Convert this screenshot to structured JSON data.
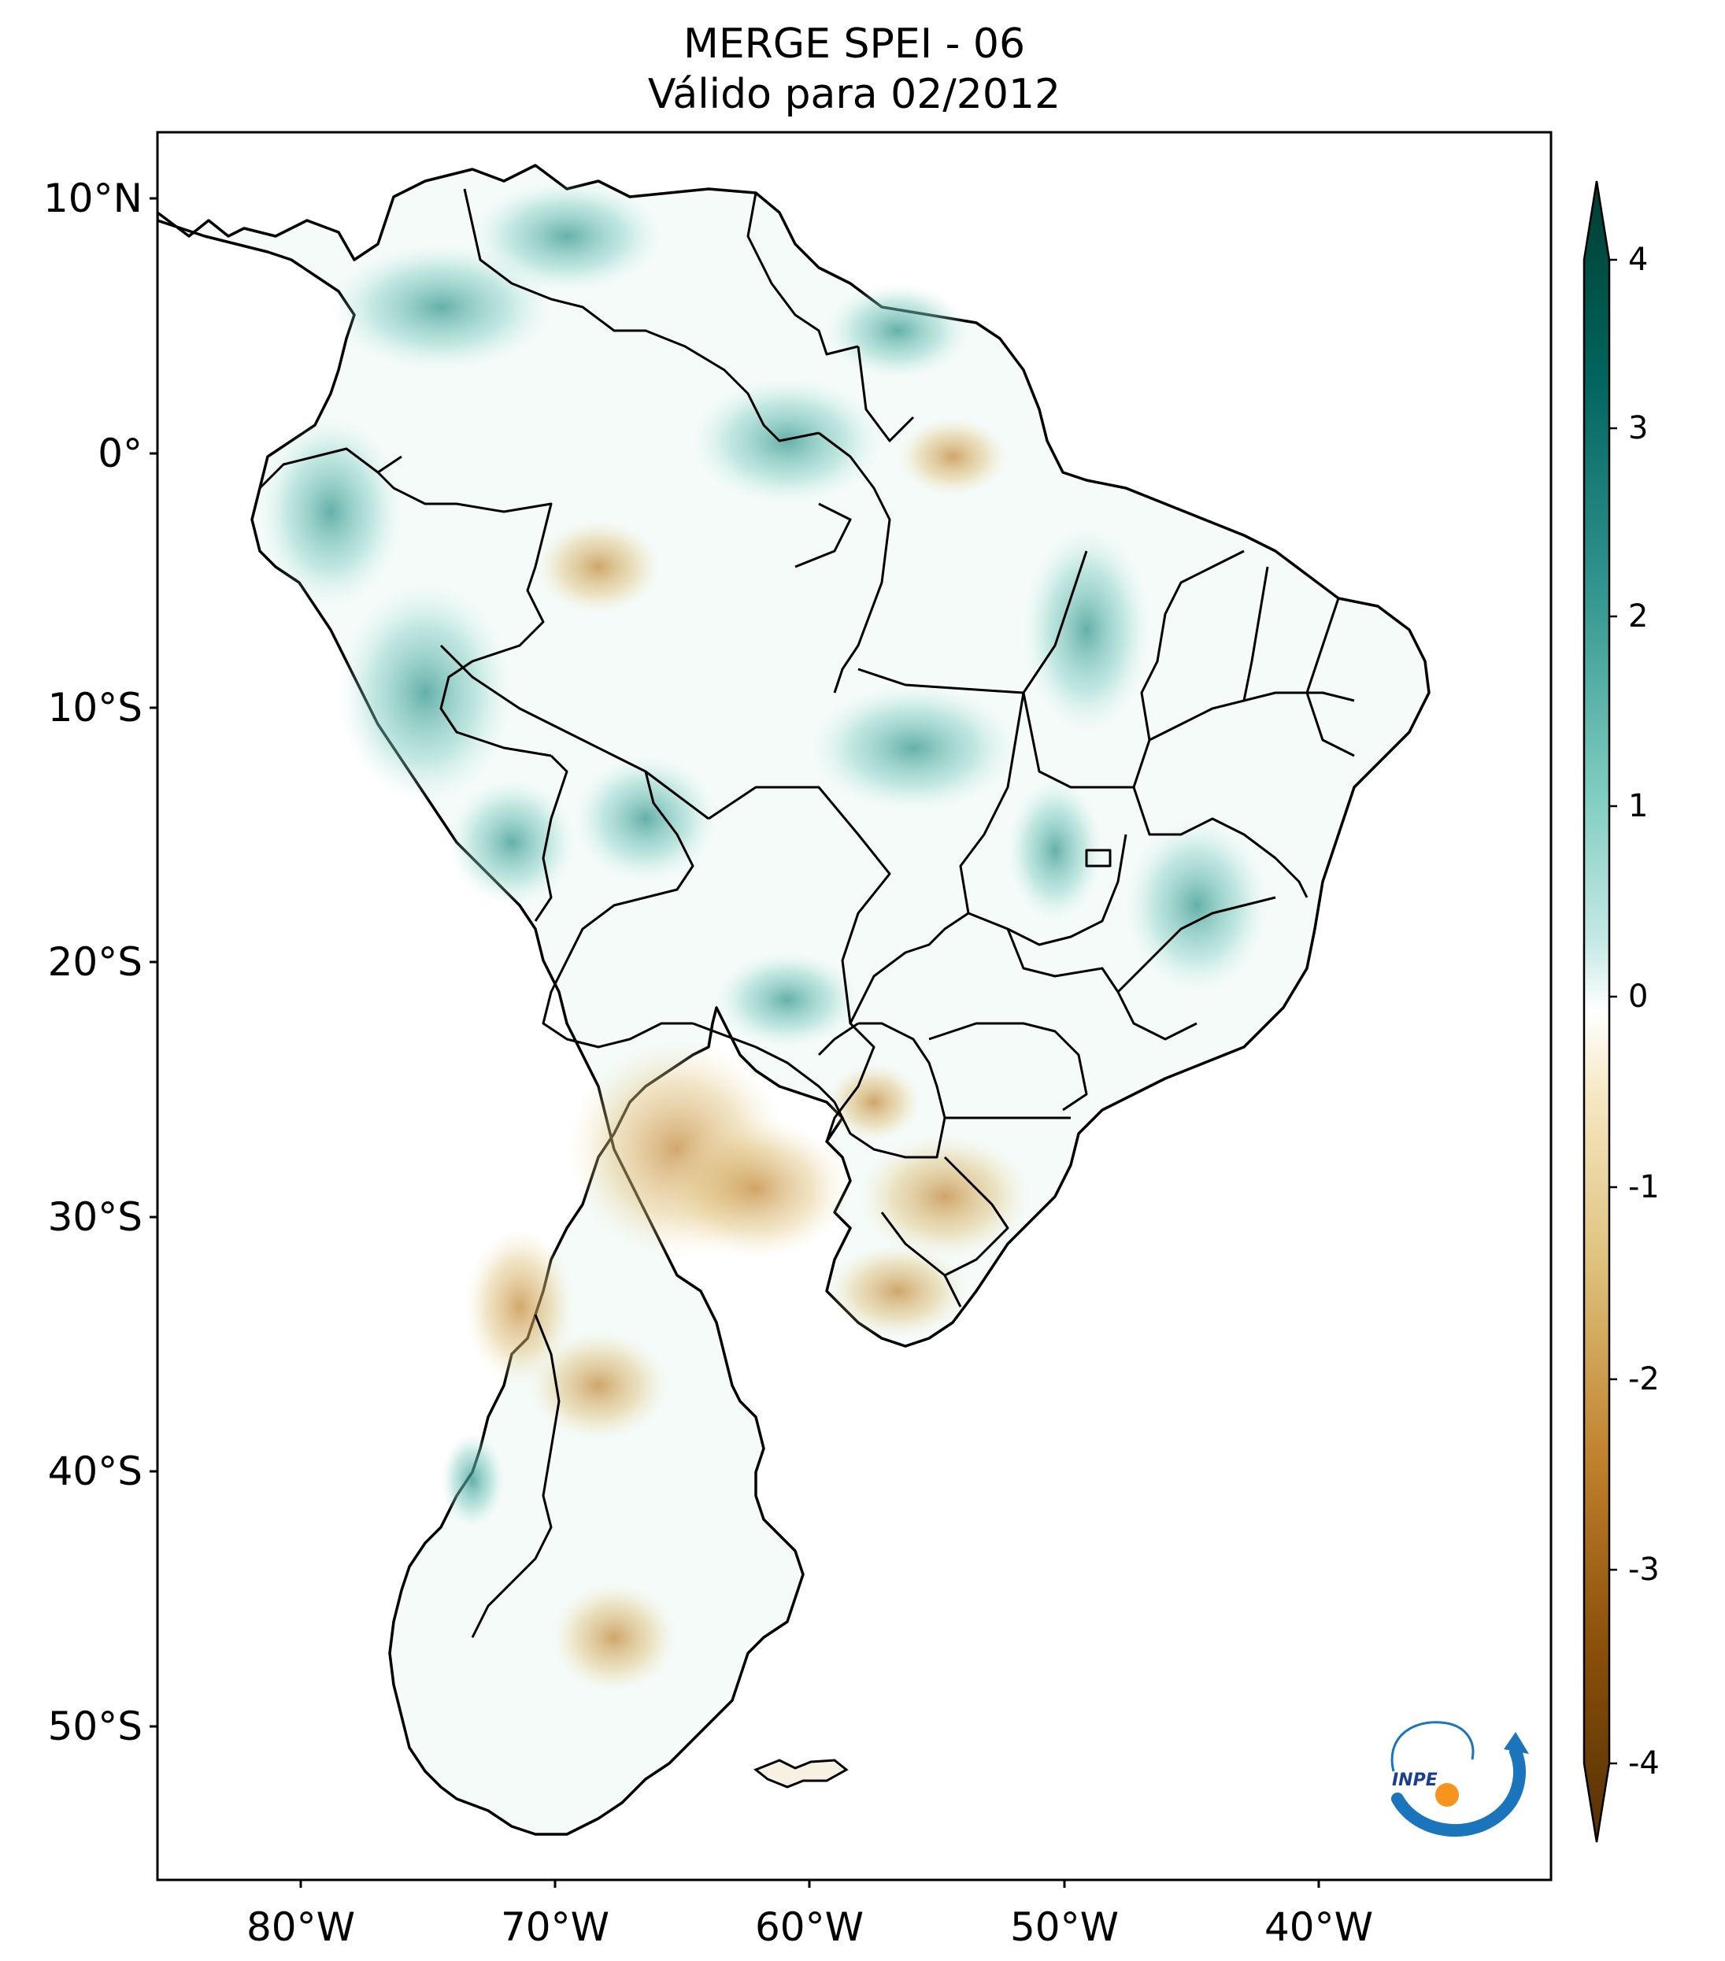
{
  "title": {
    "line1": "MERGE   SPEI - 06",
    "line2": "Válido para 02/2012"
  },
  "axes": {
    "lat_labels": [
      "10°N",
      "0°",
      "10°S",
      "20°S",
      "30°S",
      "40°S",
      "50°S"
    ],
    "lon_labels": [
      "80°W",
      "70°W",
      "60°W",
      "50°W",
      "40°W"
    ]
  },
  "colorbar": {
    "labels": [
      "4",
      "3",
      "2",
      "1",
      "0",
      "-1",
      "-2",
      "-3",
      "-4"
    ],
    "range": [
      -4,
      4
    ],
    "colors": [
      "#543005",
      "#8c510a",
      "#bf812d",
      "#dfc27d",
      "#f6e8c3",
      "#ffffff",
      "#c7eae5",
      "#80cdc1",
      "#35978f",
      "#01665e",
      "#003c30"
    ]
  },
  "logo": {
    "text": "INPE"
  },
  "colors": {
    "ocean": "#ffffff",
    "border": "#000000",
    "wet": "#35978f",
    "dry": "#bf812d"
  }
}
